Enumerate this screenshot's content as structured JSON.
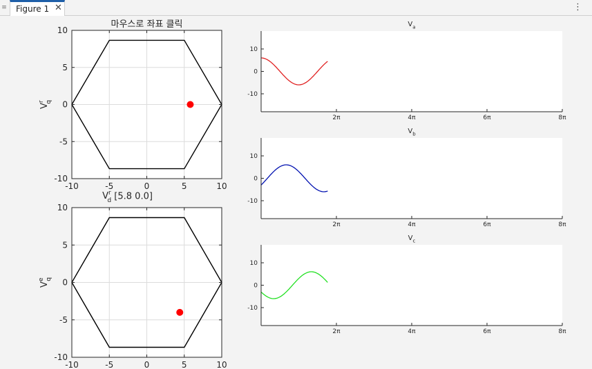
{
  "window": {
    "tab_label": "Figure 1",
    "menu_icon": "hamburger-icon",
    "close_icon": "close-icon",
    "more_icon": "kebab-icon"
  },
  "chart_data": [
    {
      "type": "scatter",
      "panel": "rotor-frame",
      "title": "마우스로 좌표 클릭",
      "xlabel_main": "V",
      "xlabel_sup": "r",
      "xlabel_sub": "d",
      "xlabel_suffix": " [5.8  0.0]",
      "ylabel_main": "V",
      "ylabel_sup": "r",
      "ylabel_sub": "q",
      "xlim": [
        -10,
        10
      ],
      "ylim": [
        -10,
        10
      ],
      "xticks": [
        -10,
        -5,
        0,
        5,
        10
      ],
      "yticks": [
        -10,
        -5,
        0,
        5,
        10
      ],
      "grid": true,
      "hexagon": [
        [
          -10,
          0
        ],
        [
          -5,
          8.66
        ],
        [
          5,
          8.66
        ],
        [
          10,
          0
        ],
        [
          5,
          -8.66
        ],
        [
          -5,
          -8.66
        ]
      ],
      "point": [
        5.8,
        0
      ],
      "point_color": "#ff0000",
      "line_color": "#000000"
    },
    {
      "type": "scatter",
      "panel": "stationary-frame",
      "ylabel_main": "V",
      "ylabel_sup": "e",
      "ylabel_sub": "q",
      "xlim": [
        -10,
        10
      ],
      "ylim": [
        -10,
        10
      ],
      "xticks": [
        -10,
        -5,
        0,
        5,
        10
      ],
      "yticks": [
        -10,
        -5,
        0,
        5,
        10
      ],
      "grid": true,
      "hexagon": [
        [
          -10,
          0
        ],
        [
          -5,
          8.66
        ],
        [
          5,
          8.66
        ],
        [
          10,
          0
        ],
        [
          5,
          -8.66
        ],
        [
          -5,
          -8.66
        ]
      ],
      "point": [
        4.4,
        -4.0
      ],
      "point_color": "#ff0000",
      "line_color": "#000000"
    },
    {
      "type": "line",
      "panel": "va",
      "title_main": "V",
      "title_sub": "a",
      "amplitude": 6.0,
      "phase": 0.0,
      "x_end": 5.55,
      "xlim": [
        0,
        25.1327
      ],
      "ylim": [
        -18,
        18
      ],
      "yticks": [
        -10,
        0,
        10
      ],
      "xticks": [
        6.2832,
        12.5664,
        18.8496,
        25.1327
      ],
      "xtick_labels": [
        "2π",
        "4π",
        "6π",
        "8π"
      ],
      "color": "#e02020"
    },
    {
      "type": "line",
      "panel": "vb",
      "title_main": "V",
      "title_sub": "b",
      "amplitude": 6.0,
      "phase": -2.0944,
      "x_end": 5.55,
      "xlim": [
        0,
        25.1327
      ],
      "ylim": [
        -18,
        18
      ],
      "yticks": [
        -10,
        0,
        10
      ],
      "xticks": [
        6.2832,
        12.5664,
        18.8496,
        25.1327
      ],
      "xtick_labels": [
        "2π",
        "4π",
        "6π",
        "8π"
      ],
      "color": "#0010b0"
    },
    {
      "type": "line",
      "panel": "vc",
      "title_main": "V",
      "title_sub": "c",
      "amplitude": 6.0,
      "phase": 2.0944,
      "x_end": 5.55,
      "xlim": [
        0,
        25.1327
      ],
      "ylim": [
        -18,
        18
      ],
      "yticks": [
        -10,
        0,
        10
      ],
      "xticks": [
        6.2832,
        12.5664,
        18.8496,
        25.1327
      ],
      "xtick_labels": [
        "2π",
        "4π",
        "6π",
        "8π"
      ],
      "color": "#20e020"
    }
  ]
}
